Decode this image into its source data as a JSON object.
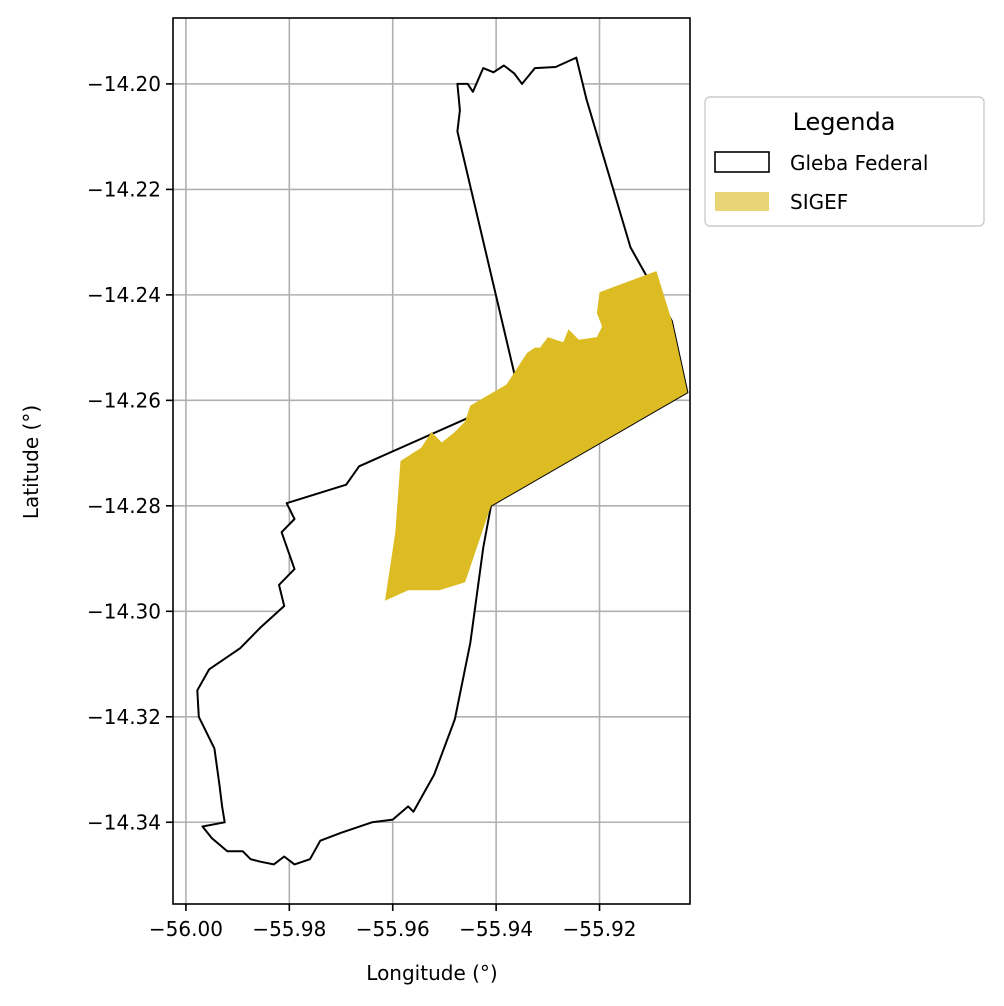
{
  "chart_data": {
    "type": "map",
    "xlabel": "Longitude (°)",
    "ylabel": "Latitude (°)",
    "xlim": [
      -56.0025,
      -55.9025
    ],
    "ylim": [
      -14.3555,
      -14.1875
    ],
    "xticks": [
      -56.0,
      -55.98,
      -55.96,
      -55.94,
      -55.92
    ],
    "xtick_labels": [
      "−56.00",
      "−55.98",
      "−55.96",
      "−55.94",
      "−55.92"
    ],
    "yticks": [
      -14.2,
      -14.22,
      -14.24,
      -14.26,
      -14.28,
      -14.3,
      -14.32,
      -14.34
    ],
    "ytick_labels": [
      "−14.20",
      "−14.22",
      "−14.24",
      "−14.26",
      "−14.28",
      "−14.30",
      "−14.32",
      "−14.34"
    ],
    "grid": true,
    "legend": {
      "title": "Legenda",
      "placement": "outside-upper-right",
      "entries": [
        {
          "label": "Gleba Federal",
          "style": "outline",
          "edge": "#000000",
          "fill": "#ffffff"
        },
        {
          "label": "SIGEF",
          "style": "fill",
          "fill": "#ead576"
        }
      ]
    },
    "colors": {
      "gleba_edge": "#000000",
      "sigef_fill": "#dcbc22",
      "grid": "#b0b0b0"
    },
    "layers": [
      {
        "name": "Gleba Federal",
        "geometry": "polygon",
        "coordinates": [
          [
            -55.9475,
            -14.2
          ],
          [
            -55.9455,
            -14.2
          ],
          [
            -55.9445,
            -14.2015
          ],
          [
            -55.9425,
            -14.197
          ],
          [
            -55.9405,
            -14.1978
          ],
          [
            -55.9385,
            -14.1965
          ],
          [
            -55.9365,
            -14.198
          ],
          [
            -55.935,
            -14.2
          ],
          [
            -55.9325,
            -14.197
          ],
          [
            -55.9285,
            -14.1968
          ],
          [
            -55.9245,
            -14.195
          ],
          [
            -55.9225,
            -14.203
          ],
          [
            -55.914,
            -14.231
          ],
          [
            -55.906,
            -14.245
          ],
          [
            -55.903,
            -14.2585
          ],
          [
            -55.941,
            -14.28
          ],
          [
            -55.9425,
            -14.288
          ],
          [
            -55.945,
            -14.306
          ],
          [
            -55.948,
            -14.3205
          ],
          [
            -55.952,
            -14.331
          ],
          [
            -55.956,
            -14.338
          ],
          [
            -55.957,
            -14.337
          ],
          [
            -55.96,
            -14.3395
          ],
          [
            -55.964,
            -14.34
          ],
          [
            -55.97,
            -14.342
          ],
          [
            -55.974,
            -14.3435
          ],
          [
            -55.976,
            -14.347
          ],
          [
            -55.979,
            -14.348
          ],
          [
            -55.981,
            -14.3465
          ],
          [
            -55.983,
            -14.348
          ],
          [
            -55.9855,
            -14.3475
          ],
          [
            -55.9875,
            -14.347
          ],
          [
            -55.989,
            -14.3455
          ],
          [
            -55.992,
            -14.3455
          ],
          [
            -55.995,
            -14.343
          ],
          [
            -55.9968,
            -14.3408
          ],
          [
            -55.9925,
            -14.34
          ],
          [
            -55.993,
            -14.337
          ],
          [
            -55.9935,
            -14.333
          ],
          [
            -55.9945,
            -14.326
          ],
          [
            -55.9975,
            -14.32
          ],
          [
            -55.9978,
            -14.315
          ],
          [
            -55.9955,
            -14.311
          ],
          [
            -55.9895,
            -14.307
          ],
          [
            -55.9855,
            -14.303
          ],
          [
            -55.981,
            -14.299
          ],
          [
            -55.982,
            -14.295
          ],
          [
            -55.979,
            -14.292
          ],
          [
            -55.9815,
            -14.285
          ],
          [
            -55.979,
            -14.2825
          ],
          [
            -55.9805,
            -14.2795
          ],
          [
            -55.969,
            -14.276
          ],
          [
            -55.9665,
            -14.2725
          ],
          [
            -55.9355,
            -14.259
          ],
          [
            -55.9445,
            -14.2215
          ],
          [
            -55.9475,
            -14.209
          ],
          [
            -55.947,
            -14.205
          ],
          [
            -55.9475,
            -14.2
          ]
        ]
      },
      {
        "name": "SIGEF",
        "geometry": "polygon",
        "coordinates": [
          [
            -55.9585,
            -14.2715
          ],
          [
            -55.9595,
            -14.285
          ],
          [
            -55.9615,
            -14.298
          ],
          [
            -55.957,
            -14.296
          ],
          [
            -55.951,
            -14.296
          ],
          [
            -55.946,
            -14.2945
          ],
          [
            -55.941,
            -14.28
          ],
          [
            -55.903,
            -14.2585
          ],
          [
            -55.906,
            -14.245
          ],
          [
            -55.909,
            -14.2355
          ],
          [
            -55.92,
            -14.2395
          ],
          [
            -55.9205,
            -14.2435
          ],
          [
            -55.9195,
            -14.246
          ],
          [
            -55.9205,
            -14.248
          ],
          [
            -55.924,
            -14.2485
          ],
          [
            -55.926,
            -14.2465
          ],
          [
            -55.927,
            -14.249
          ],
          [
            -55.93,
            -14.248
          ],
          [
            -55.9315,
            -14.25
          ],
          [
            -55.9325,
            -14.25
          ],
          [
            -55.934,
            -14.251
          ],
          [
            -55.938,
            -14.257
          ],
          [
            -55.945,
            -14.261
          ],
          [
            -55.946,
            -14.264
          ],
          [
            -55.948,
            -14.266
          ],
          [
            -55.9505,
            -14.268
          ],
          [
            -55.9525,
            -14.266
          ],
          [
            -55.9545,
            -14.269
          ],
          [
            -55.9585,
            -14.2715
          ]
        ]
      }
    ]
  }
}
